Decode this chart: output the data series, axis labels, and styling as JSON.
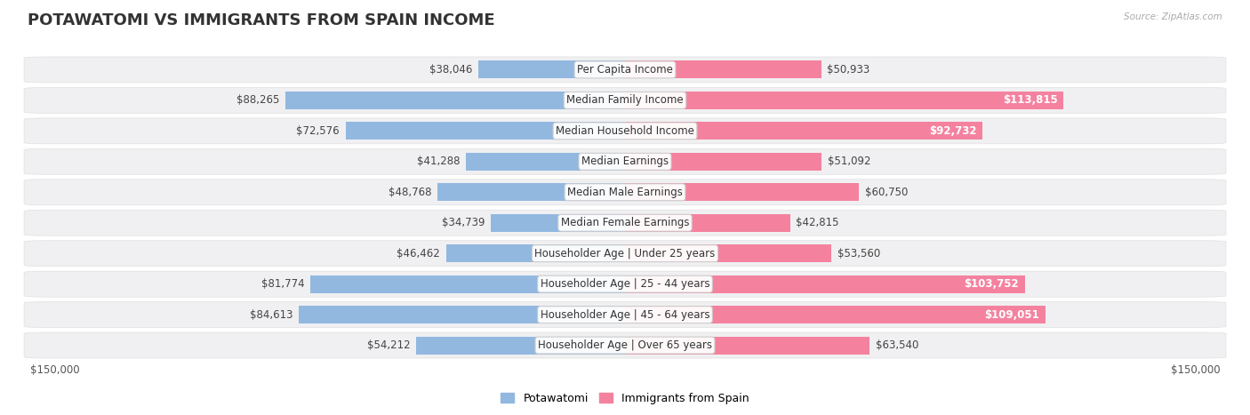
{
  "title": "POTAWATOMI VS IMMIGRANTS FROM SPAIN INCOME",
  "source": "Source: ZipAtlas.com",
  "categories": [
    "Per Capita Income",
    "Median Family Income",
    "Median Household Income",
    "Median Earnings",
    "Median Male Earnings",
    "Median Female Earnings",
    "Householder Age | Under 25 years",
    "Householder Age | 25 - 44 years",
    "Householder Age | 45 - 64 years",
    "Householder Age | Over 65 years"
  ],
  "left_values": [
    38046,
    88265,
    72576,
    41288,
    48768,
    34739,
    46462,
    81774,
    84613,
    54212
  ],
  "right_values": [
    50933,
    113815,
    92732,
    51092,
    60750,
    42815,
    53560,
    103752,
    109051,
    63540
  ],
  "left_color": "#92b8e0",
  "right_color": "#f4829e",
  "left_label": "Potawatomi",
  "right_label": "Immigrants from Spain",
  "max_value": 150000,
  "bg_color": "#ffffff",
  "row_bg": "#f0f0f2",
  "title_fontsize": 13,
  "bar_height": 0.58,
  "label_fontsize": 8.5,
  "value_fontsize": 8.5,
  "white_text_threshold": 0.52
}
